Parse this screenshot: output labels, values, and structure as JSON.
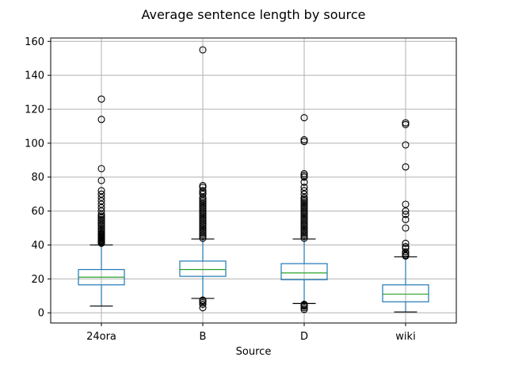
{
  "chart_data": {
    "type": "box",
    "title": "Average sentence length by source",
    "xlabel": "Source",
    "ylabel": "",
    "ylim": [
      -6,
      162
    ],
    "yticks": [
      0,
      20,
      40,
      60,
      80,
      100,
      120,
      140,
      160
    ],
    "grid": true,
    "colors": {
      "box": "#1f77b4",
      "median": "#2ca02c",
      "flier": "#000000",
      "grid": "#b0b0b0"
    },
    "categories": [
      "24ora",
      "B",
      "D",
      "wiki"
    ],
    "boxes": [
      {
        "name": "24ora",
        "whislo": 4,
        "q1": 16.5,
        "med": 21,
        "q3": 25.5,
        "whishi": 40,
        "fliers": [
          41,
          41.5,
          42,
          42.5,
          43,
          43.5,
          44,
          44.5,
          45,
          45.5,
          46,
          46.5,
          47,
          48,
          49,
          50,
          51,
          52,
          53,
          54,
          55,
          56,
          57,
          58,
          60,
          62,
          64,
          66,
          68,
          70,
          72,
          78,
          85,
          114,
          126
        ]
      },
      {
        "name": "B",
        "whislo": 8.5,
        "q1": 21.5,
        "med": 25.5,
        "q3": 30.5,
        "whishi": 43.5,
        "fliers": [
          3,
          5,
          6,
          7,
          7.5,
          44,
          45,
          46,
          47,
          48,
          49,
          50,
          51,
          52,
          53,
          54,
          55,
          56,
          57,
          58,
          59,
          60,
          61,
          62,
          63,
          64,
          65,
          66,
          67,
          68,
          70,
          71,
          72,
          74,
          75,
          155
        ]
      },
      {
        "name": "D",
        "whislo": 5.5,
        "q1": 19.5,
        "med": 23.5,
        "q3": 29,
        "whishi": 43.5,
        "fliers": [
          2,
          3,
          4,
          4.5,
          5,
          44,
          45,
          46,
          47,
          48,
          49,
          50,
          51,
          52,
          53,
          54,
          55,
          56,
          57,
          58,
          59,
          60,
          61,
          62,
          63,
          64,
          65,
          66,
          67,
          68,
          70,
          72,
          74,
          77,
          80,
          81,
          82,
          101,
          102,
          115
        ]
      },
      {
        "name": "wiki",
        "whislo": 0.5,
        "q1": 6.5,
        "med": 11,
        "q3": 16.5,
        "whishi": 33,
        "fliers": [
          33.5,
          34,
          35,
          36,
          38,
          39,
          41,
          50,
          55,
          58,
          60,
          64,
          86,
          99,
          111,
          112
        ]
      }
    ]
  }
}
